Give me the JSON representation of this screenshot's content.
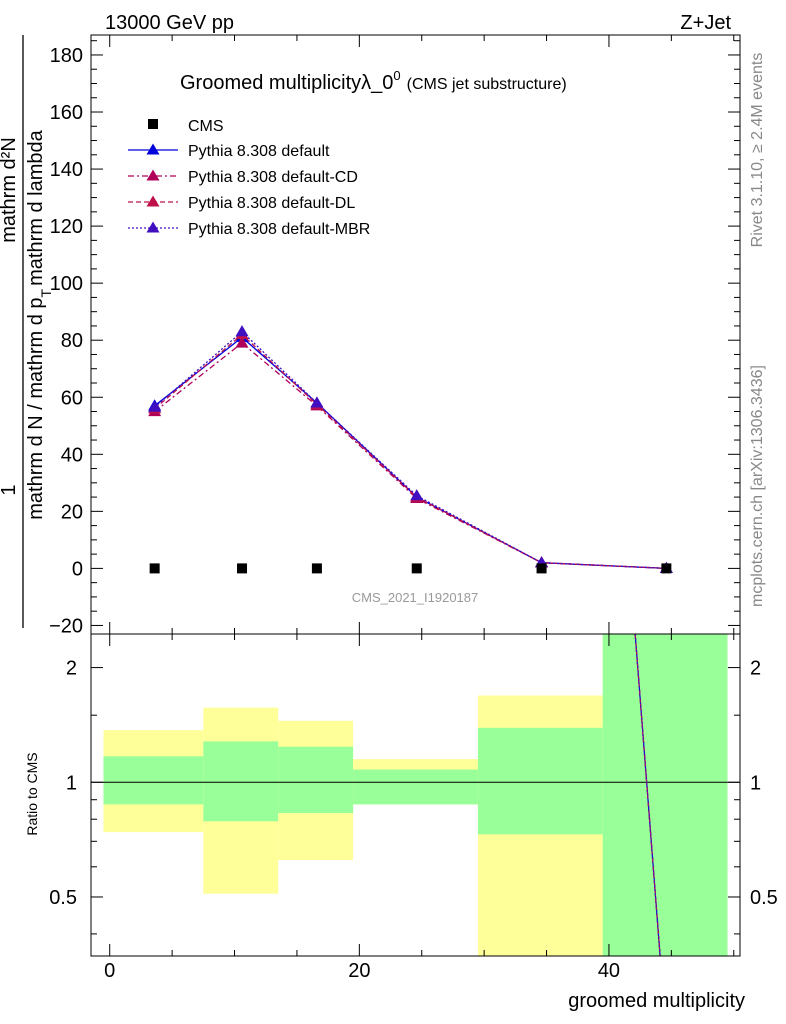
{
  "header": {
    "left": "13000 GeV pp",
    "right": "Z+Jet"
  },
  "side_texts": {
    "rivet": "Rivet 3.1.10, ≥ 2.4M events",
    "mcplots": "mcplots.cern.ch [arXiv:1306.3436]"
  },
  "chart_data": {
    "type": "line",
    "title": "Groomed multiplicityλ_0",
    "title_sup": "0",
    "title_suffix": "(CMS jet substructure)",
    "watermark": "CMS_2021_I1920187",
    "xlabel": "groomed multiplicity",
    "ylabel_num": "1",
    "ylabel_den": "mathrm d N / mathrm d p_T mathrm d lambda",
    "ylabel_den_parts": [
      "mathrm d N / mathrm d p",
      "T",
      "mathrm d lambda"
    ],
    "ylabel_right_num": "mathrm d²N",
    "ratio_ylabel": "Ratio to CMS",
    "main": {
      "xlim": [
        -1.5,
        50.5
      ],
      "ylim": [
        -23,
        187
      ],
      "y_ticks": [
        -20,
        0,
        20,
        40,
        60,
        80,
        100,
        120,
        140,
        160,
        180
      ],
      "y_tick_labels": [
        "−20",
        "0",
        "20",
        "40",
        "60",
        "80",
        "100",
        "120",
        "140",
        "160",
        "180"
      ]
    },
    "ratio": {
      "ylim": [
        0.35,
        2.45
      ],
      "y_ticks": [
        0.5,
        1,
        2
      ],
      "y_tick_labels": [
        "0.5",
        "1",
        "2"
      ],
      "x_ticks": [
        0,
        20,
        40
      ],
      "x_tick_labels": [
        "0",
        "20",
        "40"
      ]
    },
    "data": {
      "name": "CMS",
      "x": [
        3.6,
        10.6,
        16.6,
        24.6,
        34.6,
        44.6
      ],
      "y": [
        0,
        0,
        0,
        0,
        0,
        0
      ]
    },
    "series": [
      {
        "name": "Pythia 8.308 default",
        "color": "#0000dd",
        "dash": "",
        "x": [
          3.6,
          10.6,
          16.6,
          24.6,
          34.6,
          44.6
        ],
        "y": [
          57,
          81,
          58,
          25,
          2,
          0
        ]
      },
      {
        "name": "Pythia 8.308 default-CD",
        "color": "#b0005a",
        "dash": "6,3,2,3",
        "x": [
          3.6,
          10.6,
          16.6,
          24.6,
          34.6,
          44.6
        ],
        "y": [
          55,
          79,
          57,
          24.5,
          2,
          0
        ]
      },
      {
        "name": "Pythia 8.308 default-DL",
        "color": "#c0104a",
        "dash": "5,3",
        "x": [
          3.6,
          10.6,
          16.6,
          24.6,
          34.6,
          44.6
        ],
        "y": [
          56,
          82,
          57.5,
          25,
          2,
          0
        ]
      },
      {
        "name": "Pythia 8.308 default-MBR",
        "color": "#4010c0",
        "dash": "2,2",
        "x": [
          3.6,
          10.6,
          16.6,
          24.6,
          34.6,
          44.6
        ],
        "y": [
          56.5,
          83,
          58,
          25.5,
          2,
          0
        ]
      }
    ],
    "bands": [
      {
        "x0": -0.5,
        "x1": 7.5,
        "y_lo": 0.74,
        "y_hi": 1.37,
        "g_lo": 0.875,
        "g_hi": 1.17
      },
      {
        "x0": 7.5,
        "x1": 13.5,
        "y_lo": 0.51,
        "y_hi": 1.57,
        "g_lo": 0.79,
        "g_hi": 1.28
      },
      {
        "x0": 13.5,
        "x1": 19.5,
        "y_lo": 0.625,
        "y_hi": 1.45,
        "g_lo": 0.83,
        "g_hi": 1.24
      },
      {
        "x0": 19.5,
        "x1": 29.5,
        "y_lo": 0.875,
        "y_hi": 1.15,
        "g_lo": 0.875,
        "g_hi": 1.08
      },
      {
        "x0": 29.5,
        "x1": 39.5,
        "y_lo": 0.35,
        "y_hi": 1.69,
        "g_lo": 0.73,
        "g_hi": 1.39
      },
      {
        "x0": 39.5,
        "x1": 49.5,
        "y_lo": 0.35,
        "y_hi": 2.45,
        "g_lo": 0.35,
        "g_hi": 2.45
      }
    ],
    "ratio_line": {
      "x": [
        42.1,
        44.1
      ],
      "y": [
        2.45,
        0.35
      ]
    },
    "colors": {
      "yellow": "#ffff99",
      "green": "#99ff99"
    }
  }
}
